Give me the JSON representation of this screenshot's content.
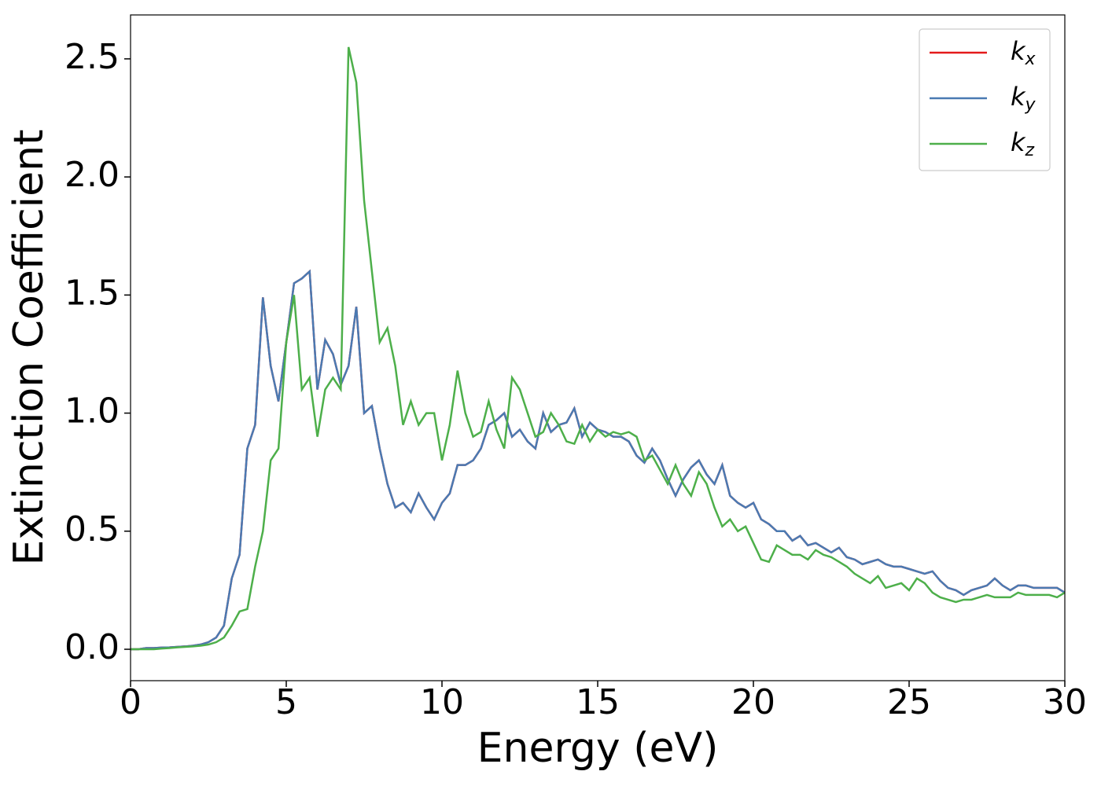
{
  "chart_data": {
    "type": "line",
    "xlabel": "Energy (eV)",
    "ylabel": "Extinction Coefficient",
    "x": [
      0,
      0.25,
      0.5,
      0.75,
      1,
      1.25,
      1.5,
      1.75,
      2,
      2.25,
      2.5,
      2.75,
      3,
      3.25,
      3.5,
      3.75,
      4,
      4.25,
      4.5,
      4.75,
      5,
      5.25,
      5.5,
      5.75,
      6,
      6.25,
      6.5,
      6.75,
      7,
      7.25,
      7.5,
      7.75,
      8,
      8.25,
      8.5,
      8.75,
      9,
      9.25,
      9.5,
      9.75,
      10,
      10.25,
      10.5,
      10.75,
      11,
      11.25,
      11.5,
      11.75,
      12,
      12.25,
      12.5,
      12.75,
      13,
      13.25,
      13.5,
      13.75,
      14,
      14.25,
      14.5,
      14.75,
      15,
      15.25,
      15.5,
      15.75,
      16,
      16.25,
      16.5,
      16.75,
      17,
      17.25,
      17.5,
      17.75,
      18,
      18.25,
      18.5,
      18.75,
      19,
      19.25,
      19.5,
      19.75,
      20,
      20.25,
      20.5,
      20.75,
      21,
      21.25,
      21.5,
      21.75,
      22,
      22.25,
      22.5,
      22.75,
      23,
      23.25,
      23.5,
      23.75,
      24,
      24.25,
      24.5,
      24.75,
      25,
      25.25,
      25.5,
      25.75,
      26,
      26.25,
      26.5,
      26.75,
      27,
      27.25,
      27.5,
      27.75,
      28,
      28.25,
      28.5,
      28.75,
      29,
      29.25,
      29.5,
      29.75,
      30
    ],
    "series": [
      {
        "name": "kx",
        "color": "#e41a1c",
        "values": [
          0,
          0,
          0.005,
          0.005,
          0.007,
          0.008,
          0.01,
          0.012,
          0.015,
          0.02,
          0.03,
          0.05,
          0.1,
          0.3,
          0.4,
          0.85,
          0.95,
          1.49,
          1.2,
          1.05,
          1.3,
          1.55,
          1.57,
          1.6,
          1.1,
          1.31,
          1.25,
          1.12,
          1.2,
          1.45,
          1.0,
          1.03,
          0.85,
          0.7,
          0.6,
          0.62,
          0.58,
          0.66,
          0.6,
          0.55,
          0.62,
          0.66,
          0.78,
          0.78,
          0.8,
          0.85,
          0.95,
          0.97,
          1.0,
          0.9,
          0.93,
          0.88,
          0.85,
          1.0,
          0.92,
          0.95,
          0.96,
          1.02,
          0.9,
          0.96,
          0.93,
          0.92,
          0.9,
          0.9,
          0.88,
          0.82,
          0.79,
          0.85,
          0.8,
          0.72,
          0.65,
          0.72,
          0.77,
          0.8,
          0.74,
          0.7,
          0.78,
          0.65,
          0.62,
          0.6,
          0.62,
          0.55,
          0.53,
          0.5,
          0.5,
          0.46,
          0.48,
          0.44,
          0.45,
          0.43,
          0.41,
          0.43,
          0.39,
          0.38,
          0.36,
          0.37,
          0.38,
          0.36,
          0.35,
          0.35,
          0.34,
          0.33,
          0.32,
          0.33,
          0.29,
          0.26,
          0.25,
          0.23,
          0.25,
          0.26,
          0.27,
          0.3,
          0.27,
          0.25,
          0.27,
          0.27,
          0.26,
          0.26,
          0.26,
          0.26,
          0.24
        ]
      },
      {
        "name": "ky",
        "color": "#4a7ab2",
        "values": [
          0,
          0,
          0.005,
          0.005,
          0.007,
          0.008,
          0.01,
          0.012,
          0.015,
          0.02,
          0.03,
          0.05,
          0.1,
          0.3,
          0.4,
          0.85,
          0.95,
          1.49,
          1.2,
          1.05,
          1.3,
          1.55,
          1.57,
          1.6,
          1.1,
          1.31,
          1.25,
          1.12,
          1.2,
          1.45,
          1.0,
          1.03,
          0.85,
          0.7,
          0.6,
          0.62,
          0.58,
          0.66,
          0.6,
          0.55,
          0.62,
          0.66,
          0.78,
          0.78,
          0.8,
          0.85,
          0.95,
          0.97,
          1.0,
          0.9,
          0.93,
          0.88,
          0.85,
          1.0,
          0.92,
          0.95,
          0.96,
          1.02,
          0.9,
          0.96,
          0.93,
          0.92,
          0.9,
          0.9,
          0.88,
          0.82,
          0.79,
          0.85,
          0.8,
          0.72,
          0.65,
          0.72,
          0.77,
          0.8,
          0.74,
          0.7,
          0.78,
          0.65,
          0.62,
          0.6,
          0.62,
          0.55,
          0.53,
          0.5,
          0.5,
          0.46,
          0.48,
          0.44,
          0.45,
          0.43,
          0.41,
          0.43,
          0.39,
          0.38,
          0.36,
          0.37,
          0.38,
          0.36,
          0.35,
          0.35,
          0.34,
          0.33,
          0.32,
          0.33,
          0.29,
          0.26,
          0.25,
          0.23,
          0.25,
          0.26,
          0.27,
          0.3,
          0.27,
          0.25,
          0.27,
          0.27,
          0.26,
          0.26,
          0.26,
          0.26,
          0.24
        ]
      },
      {
        "name": "kz",
        "color": "#4daf4a",
        "values": [
          0,
          0,
          0,
          0,
          0.003,
          0.005,
          0.008,
          0.01,
          0.012,
          0.015,
          0.02,
          0.03,
          0.05,
          0.1,
          0.16,
          0.17,
          0.35,
          0.5,
          0.8,
          0.85,
          1.3,
          1.5,
          1.1,
          1.15,
          0.9,
          1.1,
          1.15,
          1.1,
          2.55,
          2.4,
          1.9,
          1.6,
          1.3,
          1.36,
          1.2,
          0.95,
          1.05,
          0.95,
          1.0,
          1.0,
          0.8,
          0.95,
          1.18,
          1.0,
          0.9,
          0.92,
          1.05,
          0.93,
          0.85,
          1.15,
          1.1,
          1.0,
          0.9,
          0.92,
          1.0,
          0.95,
          0.88,
          0.87,
          0.95,
          0.88,
          0.93,
          0.9,
          0.92,
          0.91,
          0.92,
          0.9,
          0.8,
          0.82,
          0.76,
          0.7,
          0.78,
          0.7,
          0.65,
          0.75,
          0.7,
          0.6,
          0.52,
          0.55,
          0.5,
          0.52,
          0.45,
          0.38,
          0.37,
          0.44,
          0.42,
          0.4,
          0.4,
          0.38,
          0.42,
          0.4,
          0.39,
          0.37,
          0.35,
          0.32,
          0.3,
          0.28,
          0.31,
          0.26,
          0.27,
          0.28,
          0.25,
          0.3,
          0.28,
          0.24,
          0.22,
          0.21,
          0.2,
          0.21,
          0.21,
          0.22,
          0.23,
          0.22,
          0.22,
          0.22,
          0.24,
          0.23,
          0.23,
          0.23,
          0.23,
          0.22,
          0.24
        ]
      }
    ],
    "xlim": [
      0,
      30
    ],
    "xticks": [
      0,
      5,
      10,
      15,
      20,
      25,
      30
    ],
    "ylim": [
      -0.133,
      2.686
    ],
    "yticks": [
      {
        "value": 0,
        "label": "0.0"
      },
      0.5,
      {
        "value": 1,
        "label": "1.0"
      },
      1.5,
      {
        "value": 2,
        "label": "2.0"
      },
      2.5
    ],
    "legend": "upper right"
  }
}
